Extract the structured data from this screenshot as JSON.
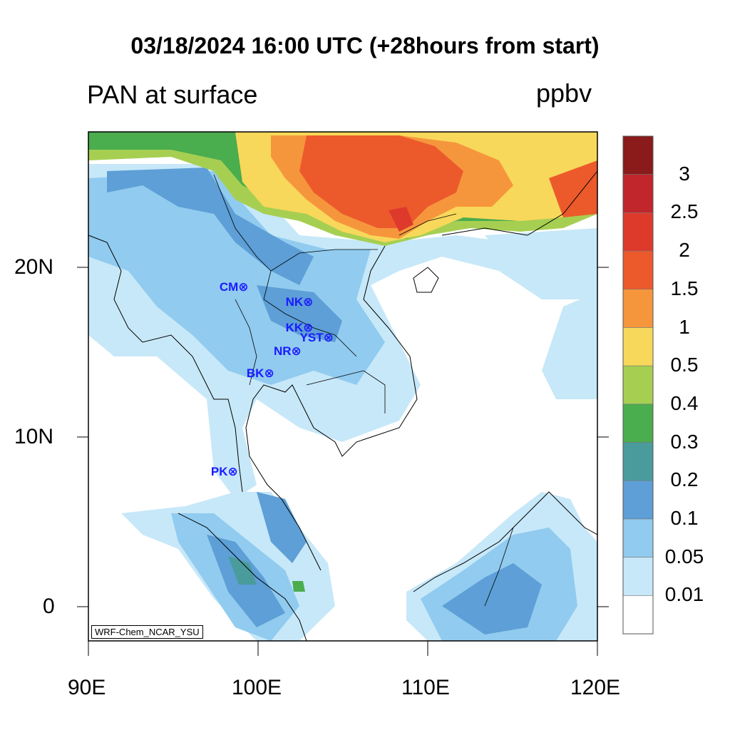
{
  "title": "03/18/2024 16:00 UTC (+28hours from start)",
  "left_title": "PAN at surface",
  "units": "ppbv",
  "credit": "WRF-Chem_NCAR_YSU",
  "x_ticks": [
    "90E",
    "100E",
    "110E",
    "120E"
  ],
  "y_ticks": [
    "20N",
    "10N",
    "0"
  ],
  "colorbar": {
    "labels": [
      "3",
      "2.5",
      "2",
      "1.5",
      "1",
      "0.5",
      "0.4",
      "0.3",
      "0.2",
      "0.1",
      "0.05",
      "0.01"
    ],
    "colors": [
      "#8b1a1a",
      "#c0262c",
      "#de3a2c",
      "#ec5a2c",
      "#f6963c",
      "#f8d85a",
      "#a6cf52",
      "#4aad4e",
      "#4a9c9c",
      "#5d9fd6",
      "#91cbef",
      "#c7e8f8",
      "#ffffff"
    ]
  },
  "stations": [
    {
      "code": "CM",
      "lon": 98.9,
      "lat": 18.8
    },
    {
      "code": "NK",
      "lon": 102.8,
      "lat": 17.9
    },
    {
      "code": "KK",
      "lon": 102.8,
      "lat": 16.4
    },
    {
      "code": "YST",
      "lon": 104.1,
      "lat": 15.8
    },
    {
      "code": "NR",
      "lon": 102.1,
      "lat": 15.0
    },
    {
      "code": "BK",
      "lon": 100.5,
      "lat": 13.7
    },
    {
      "code": "PK",
      "lon": 98.4,
      "lat": 7.9
    }
  ]
}
